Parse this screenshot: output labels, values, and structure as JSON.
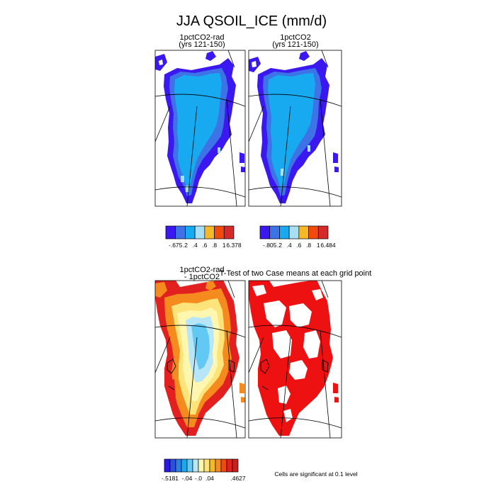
{
  "page": {
    "title": "JJA QSOIL_ICE (mm/d)",
    "footnote": "Cells are significant at 0.1 level"
  },
  "chart_data": [
    {
      "type": "heatmap",
      "title_line1": "1pctCO2-rad",
      "title_line2": "(yrs 121-150)",
      "colorbar": {
        "colors": [
          "#3b17f0",
          "#3d73e6",
          "#18aaf0",
          "#a7dff6",
          "#f5b928",
          "#f04a0c",
          "#d62a2a"
        ],
        "tick_labels": [
          "-.675",
          ".2",
          ".4",
          ".6",
          ".8",
          "1",
          "6.378"
        ]
      }
    },
    {
      "type": "heatmap",
      "title_line1": "1pctCO2",
      "title_line2": "(yrs 121-150)",
      "colorbar": {
        "colors": [
          "#3b17f0",
          "#3d73e6",
          "#18aaf0",
          "#a7dff6",
          "#f5b928",
          "#f04a0c",
          "#d62a2a"
        ],
        "tick_labels": [
          "-.805",
          ".2",
          ".4",
          ".6",
          ".8",
          "1",
          "6.484"
        ]
      }
    },
    {
      "type": "heatmap",
      "title_line1": "1pctCO2-rad",
      "title_line2": "- 1pctCO2",
      "colorbar": {
        "colors": [
          "#2b17e6",
          "#2b4fe0",
          "#2f7de6",
          "#18aaf0",
          "#62c8f4",
          "#b7e6f8",
          "#fff7b0",
          "#fce37a",
          "#f5b928",
          "#f58a1e",
          "#f04a0c",
          "#e32020",
          "#c8201c"
        ],
        "tick_labels": [
          "-.5181",
          "-.04",
          "-.0",
          ".04",
          ".4627"
        ]
      }
    },
    {
      "type": "heatmap",
      "title_line1": "T-Test of two Case means at each grid point",
      "legend_note": "Cells are significant at 0.1 level"
    }
  ]
}
